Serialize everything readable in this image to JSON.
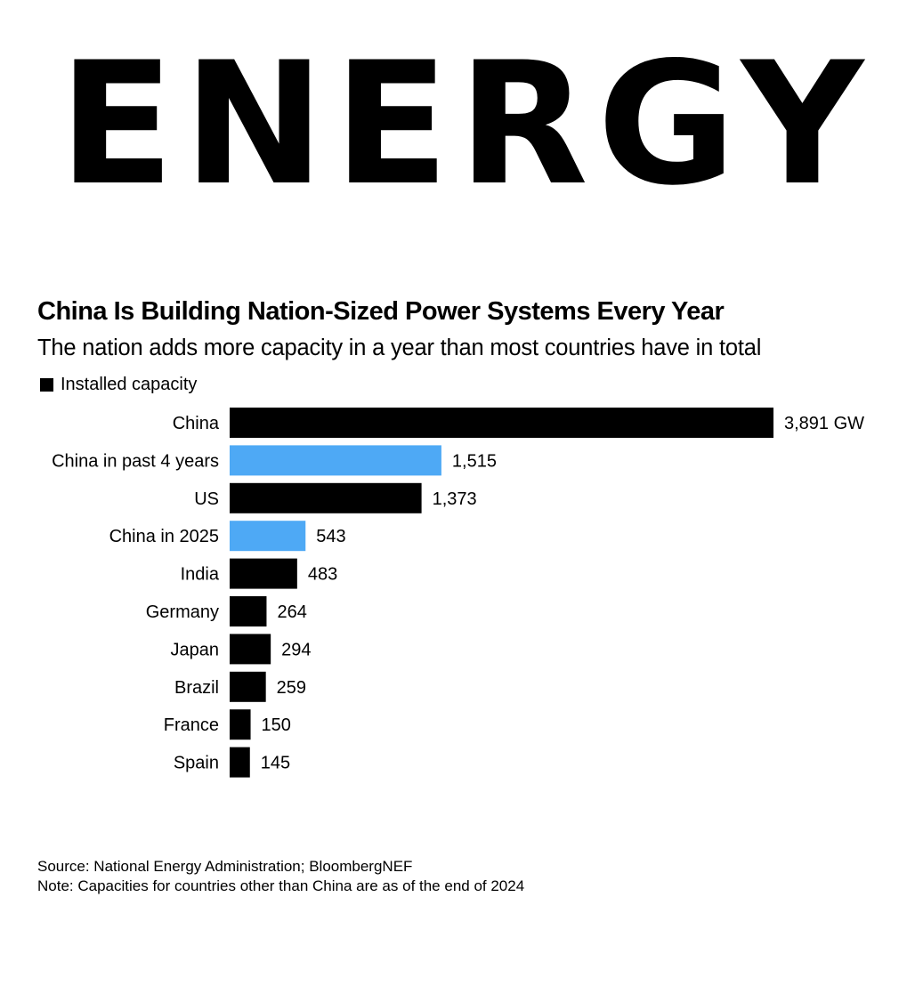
{
  "banner": {
    "text": "ENERGY"
  },
  "colors": {
    "bar_primary": "#000000",
    "bar_highlight": "#4EA9F5",
    "text": "#000000",
    "background": "#ffffff"
  },
  "chart_data": {
    "type": "bar",
    "orientation": "horizontal",
    "title": "China Is Building Nation-Sized Power Systems Every Year",
    "subtitle": "The nation adds more capacity in a year than most countries have in total",
    "legend": [
      {
        "label": "Installed capacity",
        "color": "#000000"
      }
    ],
    "categories": [
      "China",
      "China in past 4 years",
      "US",
      "China in 2025",
      "India",
      "Germany",
      "Japan",
      "Brazil",
      "France",
      "Spain"
    ],
    "values": [
      3891,
      1515,
      1373,
      543,
      483,
      264,
      294,
      259,
      150,
      145
    ],
    "value_labels": [
      "3,891 GW",
      "1,515",
      "1,373",
      "543",
      "483",
      "264",
      "294",
      "259",
      "150",
      "145"
    ],
    "highlighted": [
      false,
      true,
      false,
      true,
      false,
      false,
      false,
      false,
      false,
      false
    ],
    "unit": "GW",
    "xlim": [
      0,
      3891
    ],
    "xlabel": "",
    "ylabel": "",
    "grid": false
  },
  "footer": {
    "source": "Source: National Energy Administration; BloombergNEF",
    "note": "Note: Capacities for countries other than China are as of the end of 2024"
  }
}
